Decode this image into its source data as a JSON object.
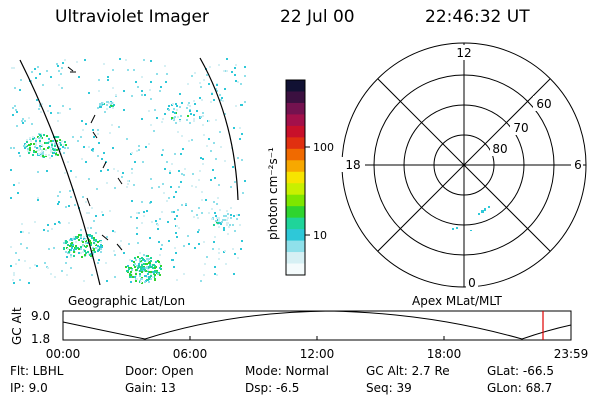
{
  "header": {
    "instrument": "Ultraviolet Imager",
    "date": "22 Jul 00",
    "time": "22:46:32 UT"
  },
  "colorbar": {
    "unit_label": "photon cm⁻²s⁻¹",
    "ticks": [
      "100",
      "10"
    ],
    "colors": [
      "#111133",
      "#3b1040",
      "#74124f",
      "#a3104a",
      "#c8102a",
      "#e03010",
      "#f06a00",
      "#f7a800",
      "#f7e400",
      "#c8f000",
      "#7ee600",
      "#2fd42f",
      "#1fd49a",
      "#2ec8d8",
      "#8fe0ea",
      "#d6f0f4",
      "#f4fbfc"
    ]
  },
  "geo_panel": {
    "label": "Geographic Lat/Lon"
  },
  "polar_panel": {
    "label": "Apex MLat/MLT",
    "mlt_labels": {
      "top": "12",
      "left": "18",
      "right": "6",
      "bottom": "0"
    },
    "lat_labels": [
      "60",
      "70",
      "80"
    ]
  },
  "altitude_plot": {
    "ylabel": "GC Alt",
    "yticks": [
      "9.0",
      "1.8"
    ],
    "xticks": [
      "00:00",
      "06:00",
      "12:00",
      "18:00",
      "23:59"
    ]
  },
  "info": {
    "flt": "Flt: LBHL",
    "ip": "IP:  9.0",
    "door": "Door: Open",
    "gain": "Gain: 13",
    "mode": "Mode: Normal",
    "dsp": "Dsp:   -6.5",
    "gc_alt": "GC Alt: 2.7 Re",
    "seq": "Seq: 39",
    "glat": "GLat:  -66.5",
    "glon": "GLon:  68.7"
  },
  "accent_colors": {
    "current_time_marker": "#e00000"
  }
}
